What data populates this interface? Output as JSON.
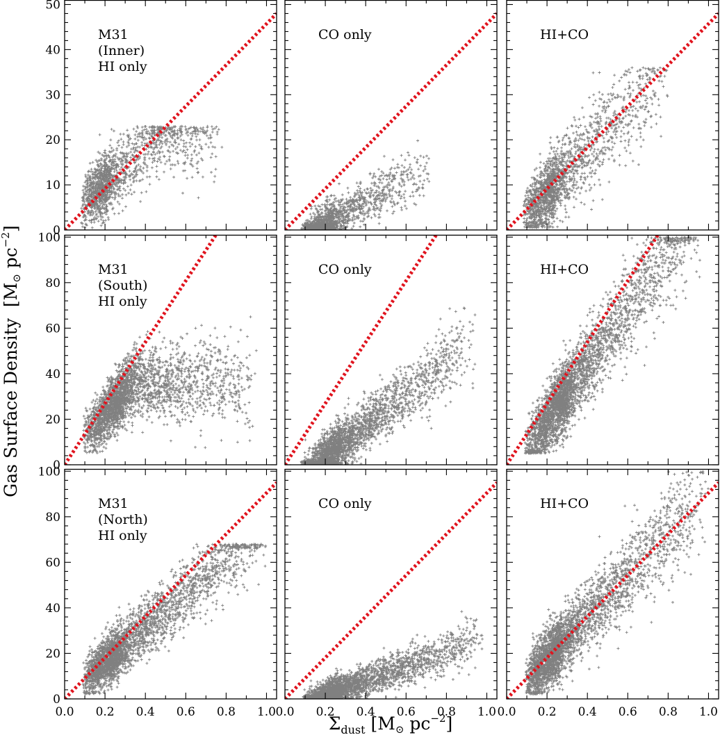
{
  "figure": {
    "ylabel_main": "Gas Surface Density",
    "ylabel_unit_open": "[M",
    "ylabel_unit_sun": "⊙",
    "ylabel_unit_pc": " pc",
    "ylabel_unit_exp": "−2",
    "ylabel_unit_close": "]",
    "xlabel_sigma": "Σ",
    "xlabel_sub": "dust",
    "xlabel_unit_open": " [M",
    "xlabel_unit_sun": "⊙",
    "xlabel_unit_pc": " pc",
    "xlabel_unit_exp": "−2",
    "xlabel_unit_close": "]",
    "colors": {
      "points": "#808080",
      "reference_line": "#e0141e",
      "axes": "#000000",
      "background": "#ffffff"
    }
  },
  "chart_data": [
    {
      "type": "scatter",
      "row": 0,
      "col": 0,
      "label_lines": [
        "M31",
        "(Inner)",
        "HI only"
      ],
      "xlim": [
        0,
        1.05
      ],
      "ylim": [
        0,
        51
      ],
      "xticks": [
        0.0,
        0.2,
        0.4,
        0.6,
        0.8,
        1.0
      ],
      "xtick_labels": [],
      "yticks": [
        0,
        10,
        20,
        30,
        40,
        50
      ],
      "ytick_labels": [
        "0",
        "10",
        "20",
        "30",
        "40",
        "50"
      ],
      "reference_line": {
        "x": [
          0,
          1.05
        ],
        "y": [
          0,
          48
        ]
      },
      "cloud": {
        "n": 1500,
        "x_min": 0.08,
        "x_mode": 0.2,
        "x_max": 0.78,
        "slope": 40,
        "intercept": 2,
        "sat": 20,
        "spread": 3.8,
        "y_lo": 0.3,
        "y_hi": 23
      }
    },
    {
      "type": "scatter",
      "row": 0,
      "col": 1,
      "label_lines": [
        "CO only"
      ],
      "xlim": [
        0,
        1.05
      ],
      "ylim": [
        0,
        51
      ],
      "xticks": [
        0.0,
        0.2,
        0.4,
        0.6,
        0.8,
        1.0
      ],
      "xtick_labels": [],
      "yticks": [
        0,
        10,
        20,
        30,
        40,
        50
      ],
      "ytick_labels": [],
      "reference_line": {
        "x": [
          0,
          1.05
        ],
        "y": [
          0,
          48
        ]
      },
      "cloud": {
        "n": 1300,
        "x_min": 0.08,
        "x_mode": 0.22,
        "x_max": 0.72,
        "slope": 24,
        "intercept": -3.5,
        "sat": 1000,
        "spread": 2.2,
        "y_lo": 0,
        "y_hi": 24
      }
    },
    {
      "type": "scatter",
      "row": 0,
      "col": 2,
      "label_lines": [
        "HI+CO"
      ],
      "xlim": [
        0,
        1.05
      ],
      "ylim": [
        0,
        51
      ],
      "xticks": [
        0.0,
        0.2,
        0.4,
        0.6,
        0.8,
        1.0
      ],
      "xtick_labels": [],
      "yticks": [
        0,
        10,
        20,
        30,
        40,
        50
      ],
      "ytick_labels": [],
      "reference_line": {
        "x": [
          0,
          1.05
        ],
        "y": [
          0,
          48
        ]
      },
      "cloud": {
        "n": 1700,
        "x_min": 0.08,
        "x_mode": 0.22,
        "x_max": 0.8,
        "slope": 48,
        "intercept": -1.5,
        "sat": 1000,
        "spread": 4.2,
        "y_lo": 0.5,
        "y_hi": 36
      }
    },
    {
      "type": "scatter",
      "row": 1,
      "col": 0,
      "label_lines": [
        "M31",
        "(South)",
        "HI only"
      ],
      "xlim": [
        0,
        1.05
      ],
      "ylim": [
        0,
        101
      ],
      "xticks": [
        0.0,
        0.2,
        0.4,
        0.6,
        0.8,
        1.0
      ],
      "xtick_labels": [],
      "yticks": [
        0,
        20,
        40,
        60,
        80,
        100
      ],
      "ytick_labels": [
        "0",
        "20",
        "40",
        "60",
        "80",
        "100"
      ],
      "reference_line": {
        "x": [
          0,
          0.75
        ],
        "y": [
          0,
          101
        ]
      },
      "cloud": {
        "n": 2600,
        "x_min": 0.09,
        "x_mode": 0.28,
        "x_max": 0.95,
        "slope": 95,
        "intercept": 3,
        "sat": 36,
        "spread": 7,
        "y_lo": 5,
        "y_hi": 66
      }
    },
    {
      "type": "scatter",
      "row": 1,
      "col": 1,
      "label_lines": [
        "CO only"
      ],
      "xlim": [
        0,
        1.05
      ],
      "ylim": [
        0,
        101
      ],
      "xticks": [
        0.0,
        0.2,
        0.4,
        0.6,
        0.8,
        1.0
      ],
      "xtick_labels": [],
      "yticks": [
        0,
        20,
        40,
        60,
        80,
        100
      ],
      "ytick_labels": [],
      "reference_line": {
        "x": [
          0,
          0.75
        ],
        "y": [
          0,
          101
        ]
      },
      "cloud": {
        "n": 2600,
        "x_min": 0.08,
        "x_mode": 0.25,
        "x_max": 0.95,
        "slope": 70,
        "intercept": -11,
        "sat": 1000,
        "spread": 5.5,
        "y_lo": 0,
        "y_hi": 70
      }
    },
    {
      "type": "scatter",
      "row": 1,
      "col": 2,
      "label_lines": [
        "HI+CO"
      ],
      "xlim": [
        0,
        1.05
      ],
      "ylim": [
        0,
        101
      ],
      "xticks": [
        0.0,
        0.2,
        0.4,
        0.6,
        0.8,
        1.0
      ],
      "xtick_labels": [],
      "yticks": [
        0,
        20,
        40,
        60,
        80,
        100
      ],
      "ytick_labels": [],
      "reference_line": {
        "x": [
          0,
          0.75
        ],
        "y": [
          0,
          101
        ]
      },
      "cloud": {
        "n": 3000,
        "x_min": 0.09,
        "x_mode": 0.28,
        "x_max": 0.96,
        "slope": 122,
        "intercept": -5,
        "sat": 1000,
        "spread": 8,
        "y_lo": 5,
        "y_hi": 100
      }
    },
    {
      "type": "scatter",
      "row": 2,
      "col": 0,
      "label_lines": [
        "M31",
        "(North)",
        "HI only"
      ],
      "xlim": [
        0,
        1.05
      ],
      "ylim": [
        0,
        101
      ],
      "xticks": [
        0.0,
        0.2,
        0.4,
        0.6,
        0.8,
        1.0
      ],
      "xtick_labels": [
        "0.0",
        "0.2",
        "0.4",
        "0.6",
        "0.8",
        "1.0"
      ],
      "yticks": [
        0,
        20,
        40,
        60,
        80,
        100
      ],
      "ytick_labels": [
        "0",
        "20",
        "40",
        "60",
        "80",
        "100"
      ],
      "reference_line": {
        "x": [
          0,
          1.05
        ],
        "y": [
          0,
          95
        ]
      },
      "cloud": {
        "n": 2800,
        "x_min": 0.09,
        "x_mode": 0.25,
        "x_max": 1.0,
        "slope": 75,
        "intercept": 1,
        "sat": 1000,
        "spread": 6,
        "y_lo": 2,
        "y_hi": 68
      }
    },
    {
      "type": "scatter",
      "row": 2,
      "col": 1,
      "label_lines": [
        "CO only"
      ],
      "xlim": [
        0,
        1.05
      ],
      "ylim": [
        0,
        101
      ],
      "xticks": [
        0.0,
        0.2,
        0.4,
        0.6,
        0.8,
        1.0
      ],
      "xtick_labels": [
        "0.0",
        "0.2",
        "0.4",
        "0.6",
        "0.8",
        "1.0"
      ],
      "yticks": [
        0,
        20,
        40,
        60,
        80,
        100
      ],
      "ytick_labels": [],
      "reference_line": {
        "x": [
          0,
          1.05
        ],
        "y": [
          0,
          95
        ]
      },
      "cloud": {
        "n": 2800,
        "x_min": 0.09,
        "x_mode": 0.25,
        "x_max": 0.98,
        "slope": 32,
        "intercept": -5,
        "sat": 1000,
        "spread": 3.5,
        "y_lo": 0,
        "y_hi": 57
      }
    },
    {
      "type": "scatter",
      "row": 2,
      "col": 2,
      "label_lines": [
        "HI+CO"
      ],
      "xlim": [
        0,
        1.05
      ],
      "ylim": [
        0,
        101
      ],
      "xticks": [
        0.0,
        0.2,
        0.4,
        0.6,
        0.8,
        1.0
      ],
      "xtick_labels": [
        "0.0",
        "0.2",
        "0.4",
        "0.6",
        "0.8",
        "1.0"
      ],
      "yticks": [
        0,
        20,
        40,
        60,
        80,
        100
      ],
      "ytick_labels": [],
      "reference_line": {
        "x": [
          0,
          1.05
        ],
        "y": [
          0,
          95
        ]
      },
      "cloud": {
        "n": 3000,
        "x_min": 0.09,
        "x_mode": 0.25,
        "x_max": 1.0,
        "slope": 92,
        "intercept": -1,
        "sat": 1000,
        "spread": 7.5,
        "y_lo": 2,
        "y_hi": 100
      }
    }
  ]
}
